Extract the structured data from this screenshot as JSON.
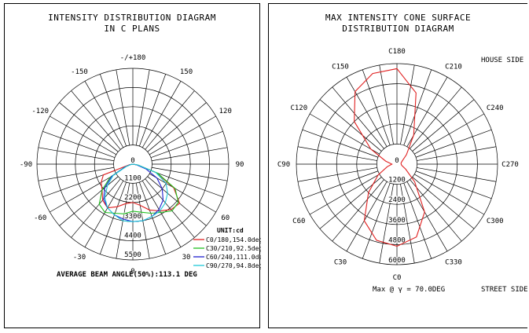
{
  "left": {
    "title_line1": "INTENSITY DISTRIBUTION DIAGRAM",
    "title_line2": "IN C PLANS",
    "angle_labels": [
      "0",
      "30",
      "60",
      "90",
      "120",
      "150",
      "-/+180",
      "-150",
      "-120",
      "-90",
      "-60",
      "-30"
    ],
    "radial_labels": [
      "0",
      "1100",
      "2200",
      "3300",
      "4400",
      "5500"
    ],
    "unit": "UNIT:cd",
    "legend": [
      {
        "label": "C0/180,154.0deg",
        "color": "#e02020"
      },
      {
        "label": "C30/210,92.5deg",
        "color": "#20c020"
      },
      {
        "label": "C60/240,111.0deg",
        "color": "#2020d0"
      },
      {
        "label": "C90/270,94.8deg",
        "color": "#20c8d8"
      }
    ],
    "footer": "AVERAGE BEAM ANGLE(50%):113.1 DEG"
  },
  "right": {
    "title_line1": "MAX INTENSITY CONE SURFACE",
    "title_line2": "DISTRIBUTION DIAGRAM",
    "angle_labels": [
      "C0",
      "C30",
      "C60",
      "C90",
      "C120",
      "C150",
      "C180",
      "C210",
      "C240",
      "C270",
      "C300",
      "C330"
    ],
    "radial_labels": [
      "0",
      "1200",
      "2400",
      "3600",
      "4800",
      "6000"
    ],
    "house_side": "HOUSE SIDE",
    "street_side": "STREET SIDE",
    "footer": "Max @ γ = 70.0DEG",
    "curve_color": "#e02020"
  },
  "chart_data": [
    {
      "type": "polar-line",
      "title": "INTENSITY DISTRIBUTION DIAGRAM IN C PLANS",
      "unit": "cd",
      "rlim": [
        0,
        5500
      ],
      "r_ticks": [
        0,
        1100,
        2200,
        3300,
        4400,
        5500
      ],
      "gamma_deg": [
        -90,
        -80,
        -70,
        -60,
        -50,
        -40,
        -30,
        -20,
        -10,
        0,
        10,
        20,
        30,
        40,
        50,
        60,
        70,
        80,
        90
      ],
      "series": [
        {
          "name": "C0/180,154.0deg",
          "color": "#e02020",
          "values": [
            0,
            200,
            1800,
            2100,
            2300,
            2700,
            2900,
            2600,
            2300,
            2200,
            2400,
            2800,
            3100,
            3400,
            3500,
            2700,
            1400,
            300,
            0
          ]
        },
        {
          "name": "C30/210,92.5deg",
          "color": "#20c020",
          "values": [
            0,
            100,
            500,
            1500,
            2300,
            3000,
            3200,
            3000,
            2900,
            2700,
            2800,
            3000,
            3200,
            3500,
            3400,
            2800,
            1500,
            300,
            0
          ]
        },
        {
          "name": "C60/240,111.0deg",
          "color": "#2020d0",
          "values": [
            0,
            150,
            500,
            1400,
            2100,
            2600,
            2900,
            3100,
            3200,
            3300,
            3300,
            3200,
            3000,
            2700,
            2200,
            1600,
            800,
            200,
            0
          ]
        },
        {
          "name": "C90/270,94.8deg",
          "color": "#20c8d8",
          "values": [
            0,
            100,
            400,
            1300,
            1900,
            2500,
            2900,
            3100,
            3300,
            3300,
            3300,
            3200,
            3100,
            2900,
            2600,
            2200,
            1400,
            300,
            0
          ]
        }
      ]
    },
    {
      "type": "polar-line",
      "title": "MAX INTENSITY CONE SURFACE DISTRIBUTION DIAGRAM",
      "unit": "cd",
      "rlim": [
        0,
        6000
      ],
      "r_ticks": [
        0,
        1200,
        2400,
        3600,
        4800,
        6000
      ],
      "c_deg": [
        0,
        15,
        30,
        45,
        60,
        75,
        90,
        105,
        120,
        135,
        150,
        165,
        180,
        195,
        210,
        225,
        240,
        255,
        270,
        285,
        300,
        315,
        330,
        345
      ],
      "series": [
        {
          "name": "",
          "color": "#e02020",
          "values": [
            4900,
            4700,
            3900,
            2400,
            1300,
            600,
            300,
            700,
            1800,
            3600,
            5000,
            5600,
            5700,
            4400,
            2000,
            800,
            350,
            250,
            250,
            300,
            600,
            1500,
            3300,
            4500
          ]
        }
      ]
    }
  ]
}
